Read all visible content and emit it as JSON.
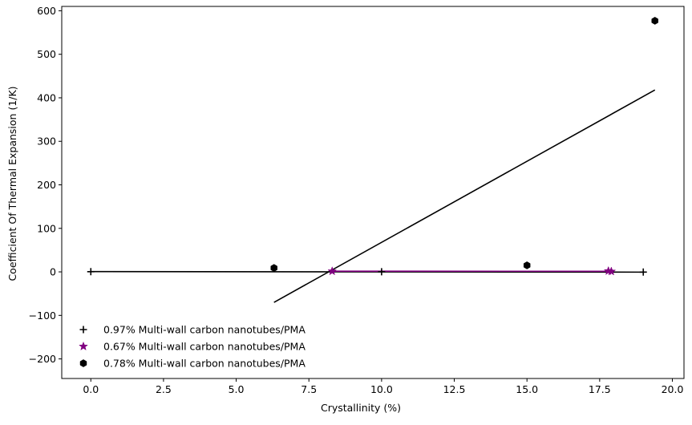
{
  "chart_data": {
    "type": "scatter",
    "title": "",
    "xlabel": "Crystallinity (%)",
    "ylabel": "Coefficient Of Thermal Expansion (1/K)",
    "xlim": [
      -1.0,
      20.4
    ],
    "ylim": [
      -245,
      610
    ],
    "xticks": [
      0.0,
      2.5,
      5.0,
      7.5,
      10.0,
      12.5,
      15.0,
      17.5,
      20.0
    ],
    "xtick_labels": [
      "0.0",
      "2.5",
      "5.0",
      "7.5",
      "10.0",
      "12.5",
      "15.0",
      "17.5",
      "20.0"
    ],
    "yticks": [
      -200,
      -100,
      0,
      100,
      200,
      300,
      400,
      500,
      600
    ],
    "ytick_labels": [
      "−200",
      "−100",
      "0",
      "100",
      "200",
      "300",
      "400",
      "500",
      "600"
    ],
    "grid": false,
    "legend_position": "lower-left",
    "series": [
      {
        "name": "0.97% Multi-wall carbon nanotubes/PMA",
        "marker": "plus",
        "color": "#000000",
        "x": [
          0.0,
          10.0,
          19.0
        ],
        "y": [
          0.5,
          0.2,
          -0.5
        ],
        "fit": {
          "x": [
            0.0,
            19.0
          ],
          "y": [
            0.6,
            -0.6
          ],
          "color": "#000000"
        }
      },
      {
        "name": "0.67% Multi-wall carbon nanotubes/PMA",
        "marker": "star",
        "color": "#800080",
        "x": [
          8.3,
          17.8,
          17.9
        ],
        "y": [
          1.5,
          2.0,
          1.0
        ],
        "fit": {
          "x": [
            8.3,
            17.9
          ],
          "y": [
            1.6,
            1.4
          ],
          "color": "#800080"
        }
      },
      {
        "name": "0.78% Multi-wall carbon nanotubes/PMA",
        "marker": "hexagon",
        "color": "#000000",
        "x": [
          6.3,
          15.0,
          19.4
        ],
        "y": [
          9.0,
          15.0,
          577.0
        ],
        "fit": {
          "x": [
            6.3,
            19.4
          ],
          "y": [
            -70.0,
            418.0
          ],
          "color": "#000000"
        }
      }
    ]
  }
}
